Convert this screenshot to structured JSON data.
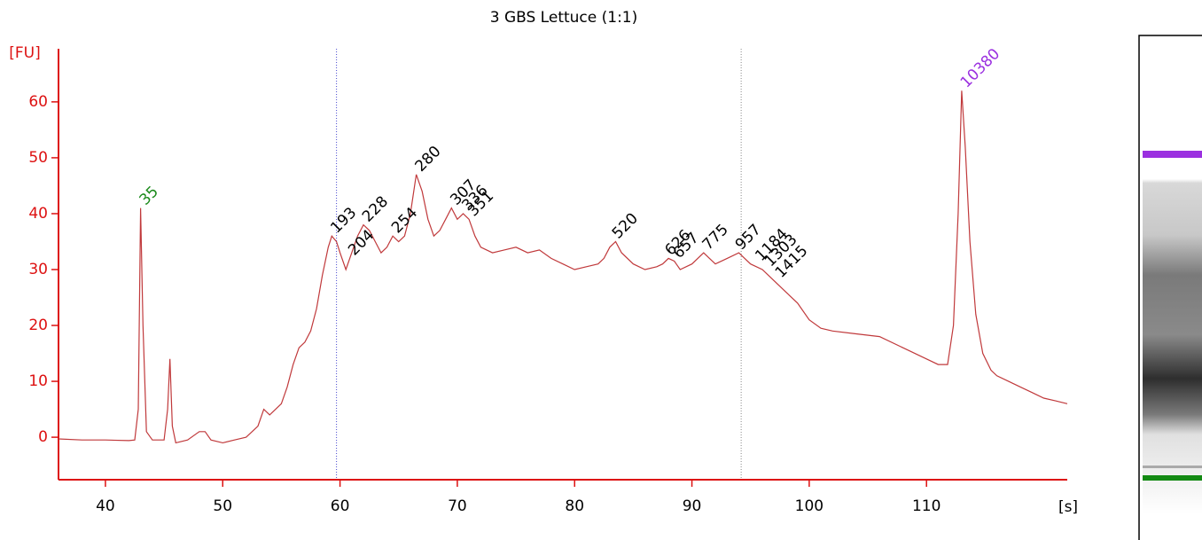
{
  "chart_data": {
    "type": "line",
    "title": "3 GBS Lettuce (1:1)",
    "y_label": "[FU]",
    "x_label": "[s]",
    "color": "#c0393b",
    "axis_color": "#dd1111",
    "x": [
      36,
      38,
      40,
      42,
      42.5,
      42.8,
      43.0,
      43.2,
      43.5,
      44,
      45,
      45.3,
      45.5,
      45.7,
      46,
      47,
      48,
      48.5,
      49,
      50,
      51,
      52,
      53,
      53.5,
      54,
      55,
      55.5,
      56,
      56.5,
      57,
      57.5,
      58,
      58.5,
      59,
      59.3,
      59.7,
      60,
      60.5,
      61,
      61.5,
      62,
      62.5,
      63,
      63.5,
      64,
      64.5,
      65,
      65.5,
      66,
      66.5,
      67,
      67.5,
      68,
      68.5,
      69,
      69.5,
      70,
      70.5,
      71,
      71.5,
      72,
      73,
      74,
      75,
      76,
      77,
      78,
      79,
      80,
      81,
      82,
      82.5,
      83,
      83.5,
      84,
      85,
      86,
      87,
      87.5,
      88,
      88.5,
      89,
      90,
      91,
      91.5,
      92,
      93,
      94,
      94.5,
      95,
      96,
      97,
      98,
      99,
      100,
      101,
      102,
      104,
      106,
      108,
      110,
      111,
      111.8,
      112.3,
      112.7,
      113.0,
      113.3,
      113.7,
      114.2,
      114.8,
      115.5,
      116,
      117,
      118,
      119,
      120,
      121,
      122
    ],
    "values": [
      -0.3,
      -0.5,
      -0.5,
      -0.6,
      -0.5,
      5,
      41,
      20,
      1,
      -0.5,
      -0.5,
      5,
      14,
      2,
      -1,
      -0.5,
      1,
      1,
      -0.5,
      -1,
      -0.5,
      0,
      2,
      5,
      4,
      6,
      9,
      13,
      16,
      17,
      19,
      23,
      29,
      34,
      36,
      35,
      33,
      30,
      33,
      36,
      38,
      37,
      35,
      33,
      34,
      36,
      35,
      36,
      40,
      47,
      44,
      39,
      36,
      37,
      39,
      41,
      39,
      40,
      39,
      36,
      34,
      33,
      33.5,
      34,
      33,
      33.5,
      32,
      31,
      30,
      30.5,
      31,
      32,
      34,
      35,
      33,
      31,
      30,
      30.5,
      31,
      32,
      31.5,
      30,
      31,
      33,
      32,
      31,
      32,
      33,
      32,
      31,
      30,
      28,
      26,
      24,
      21,
      19.5,
      19,
      18.5,
      18,
      16,
      14,
      13,
      13,
      20,
      40,
      62,
      52,
      35,
      22,
      15,
      12,
      11,
      10,
      9,
      8,
      7,
      6.5,
      6
    ],
    "xlim": [
      36,
      122
    ],
    "ylim": [
      -7.6,
      69.5
    ],
    "xticks": [
      40,
      50,
      60,
      70,
      80,
      90,
      100,
      110
    ],
    "yticks": [
      0,
      10,
      20,
      30,
      40,
      50,
      60
    ],
    "markers": [
      {
        "x": 59.7,
        "color": "#4a4ad0"
      },
      {
        "x": 94.2,
        "color": "#888888"
      }
    ],
    "peaks": [
      {
        "label": "35",
        "x": 43,
        "y": 41,
        "color": "#1a8a1a"
      },
      {
        "label": "193",
        "x": 59.3,
        "y": 36,
        "color": "#000000"
      },
      {
        "label": "204",
        "x": 60.8,
        "y": 32,
        "color": "#000000"
      },
      {
        "label": "228",
        "x": 62,
        "y": 38,
        "color": "#000000"
      },
      {
        "label": "254",
        "x": 64.5,
        "y": 36,
        "color": "#000000"
      },
      {
        "label": "280",
        "x": 66.5,
        "y": 47,
        "color": "#000000"
      },
      {
        "label": "307",
        "x": 69.5,
        "y": 41,
        "color": "#000000"
      },
      {
        "label": "336",
        "x": 70.5,
        "y": 40,
        "color": "#000000"
      },
      {
        "label": "351",
        "x": 71,
        "y": 39,
        "color": "#000000"
      },
      {
        "label": "520",
        "x": 83.3,
        "y": 35,
        "color": "#000000"
      },
      {
        "label": "626",
        "x": 87.8,
        "y": 32,
        "color": "#000000"
      },
      {
        "label": "657",
        "x": 88.5,
        "y": 31.5,
        "color": "#000000"
      },
      {
        "label": "775",
        "x": 91,
        "y": 33,
        "color": "#000000"
      },
      {
        "label": "957",
        "x": 93.8,
        "y": 33,
        "color": "#000000"
      },
      {
        "label": "1184",
        "x": 95.5,
        "y": 31,
        "color": "#000000"
      },
      {
        "label": "1303",
        "x": 96.3,
        "y": 30,
        "color": "#000000"
      },
      {
        "label": "1415",
        "x": 97.2,
        "y": 28,
        "color": "#000000"
      },
      {
        "label": "10380",
        "x": 113,
        "y": 62,
        "color": "#9b30e0"
      }
    ]
  }
}
